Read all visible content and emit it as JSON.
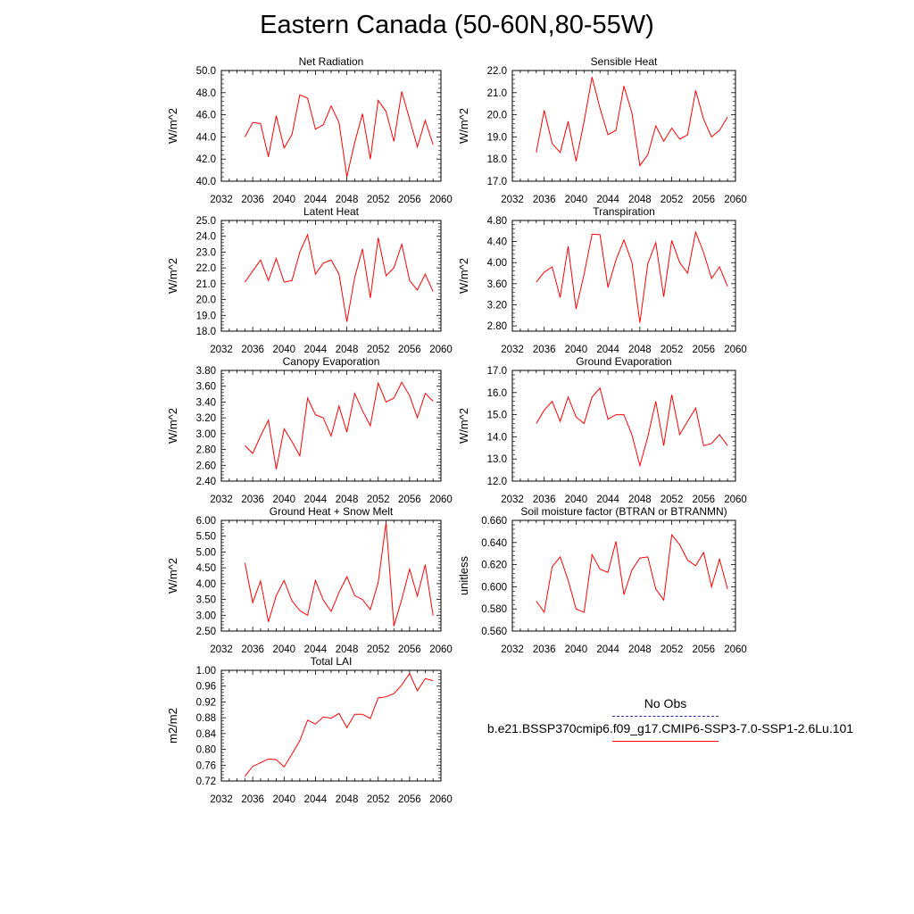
{
  "title": "Eastern Canada (50-60N,80-55W)",
  "legend": {
    "obs_label": "No Obs",
    "obs_color": "#1f2bb8",
    "case_label": "b.e21.BSSP370cmip6.f09_g17.CMIP6-SSP3-7.0-SSP1-2.6Lu.101",
    "case_color": "#ff0000"
  },
  "chart_data": [
    {
      "type": "line",
      "title": "Net Radiation",
      "ylabel": "W/m^2",
      "xlim": [
        2032,
        2060
      ],
      "xticks": [
        2032,
        2036,
        2040,
        2044,
        2048,
        2052,
        2056,
        2060
      ],
      "ylim": [
        40.0,
        50.0
      ],
      "yticks": [
        "40.0",
        "42.0",
        "44.0",
        "46.0",
        "48.0",
        "50.0"
      ],
      "x": [
        2035,
        2036,
        2037,
        2038,
        2039,
        2040,
        2041,
        2042,
        2043,
        2044,
        2045,
        2046,
        2047,
        2048,
        2049,
        2050,
        2051,
        2052,
        2053,
        2054,
        2055,
        2056,
        2057,
        2058,
        2059
      ],
      "values": [
        44.0,
        45.3,
        45.2,
        42.2,
        45.9,
        43.0,
        44.2,
        47.8,
        47.5,
        44.7,
        45.1,
        46.8,
        45.3,
        40.4,
        43.5,
        46.1,
        42.0,
        47.3,
        46.3,
        43.6,
        48.1,
        45.6,
        43.1,
        45.5,
        43.3
      ],
      "color": "#ff0000"
    },
    {
      "type": "line",
      "title": "Sensible Heat",
      "ylabel": "W/m^2",
      "xlim": [
        2032,
        2060
      ],
      "xticks": [
        2032,
        2036,
        2040,
        2044,
        2048,
        2052,
        2056,
        2060
      ],
      "ylim": [
        17.0,
        22.0
      ],
      "yticks": [
        "17.0",
        "18.0",
        "19.0",
        "20.0",
        "21.0",
        "22.0"
      ],
      "x": [
        2035,
        2036,
        2037,
        2038,
        2039,
        2040,
        2041,
        2042,
        2043,
        2044,
        2045,
        2046,
        2047,
        2048,
        2049,
        2050,
        2051,
        2052,
        2053,
        2054,
        2055,
        2056,
        2057,
        2058,
        2059
      ],
      "values": [
        18.3,
        20.2,
        18.7,
        18.3,
        19.7,
        17.9,
        19.7,
        21.7,
        20.3,
        19.1,
        19.3,
        21.3,
        20.1,
        17.7,
        18.2,
        19.5,
        18.8,
        19.4,
        18.9,
        19.1,
        21.1,
        19.8,
        19.0,
        19.3,
        19.9
      ],
      "color": "#ff0000"
    },
    {
      "type": "line",
      "title": "Latent Heat",
      "ylabel": "W/m^2",
      "xlim": [
        2032,
        2060
      ],
      "xticks": [
        2032,
        2036,
        2040,
        2044,
        2048,
        2052,
        2056,
        2060
      ],
      "ylim": [
        18.0,
        25.0
      ],
      "yticks": [
        "18.0",
        "19.0",
        "20.0",
        "21.0",
        "22.0",
        "23.0",
        "24.0",
        "25.0"
      ],
      "x": [
        2035,
        2036,
        2037,
        2038,
        2039,
        2040,
        2041,
        2042,
        2043,
        2044,
        2045,
        2046,
        2047,
        2048,
        2049,
        2050,
        2051,
        2052,
        2053,
        2054,
        2055,
        2056,
        2057,
        2058,
        2059
      ],
      "values": [
        21.1,
        21.8,
        22.5,
        21.2,
        22.6,
        21.1,
        21.2,
        23.0,
        24.1,
        21.6,
        22.3,
        22.5,
        21.6,
        18.6,
        21.4,
        23.2,
        20.1,
        23.9,
        21.5,
        22.0,
        23.5,
        21.2,
        20.6,
        21.6,
        20.5
      ],
      "color": "#ff0000"
    },
    {
      "type": "line",
      "title": "Transpiration",
      "ylabel": "W/m^2",
      "xlim": [
        2032,
        2060
      ],
      "xticks": [
        2032,
        2036,
        2040,
        2044,
        2048,
        2052,
        2056,
        2060
      ],
      "ylim": [
        2.7,
        4.8
      ],
      "yticks": [
        "2.80",
        "3.20",
        "3.60",
        "4.00",
        "4.40",
        "4.80"
      ],
      "x": [
        2035,
        2036,
        2037,
        2038,
        2039,
        2040,
        2041,
        2042,
        2043,
        2044,
        2045,
        2046,
        2047,
        2048,
        2049,
        2050,
        2051,
        2052,
        2053,
        2054,
        2055,
        2056,
        2057,
        2058,
        2059
      ],
      "values": [
        3.63,
        3.82,
        3.92,
        3.34,
        4.31,
        3.12,
        3.78,
        4.54,
        4.53,
        3.53,
        4.05,
        4.43,
        4.01,
        2.86,
        3.98,
        4.38,
        3.35,
        4.42,
        4.0,
        3.8,
        4.58,
        4.19,
        3.7,
        3.92,
        3.55
      ],
      "color": "#ff0000"
    },
    {
      "type": "line",
      "title": "Canopy Evaporation",
      "ylabel": "W/m^2",
      "xlim": [
        2032,
        2060
      ],
      "xticks": [
        2032,
        2036,
        2040,
        2044,
        2048,
        2052,
        2056,
        2060
      ],
      "ylim": [
        2.4,
        3.8
      ],
      "yticks": [
        "2.40",
        "2.60",
        "2.80",
        "3.00",
        "3.20",
        "3.40",
        "3.60",
        "3.80"
      ],
      "x": [
        2035,
        2036,
        2037,
        2038,
        2039,
        2040,
        2041,
        2042,
        2043,
        2044,
        2045,
        2046,
        2047,
        2048,
        2049,
        2050,
        2051,
        2052,
        2053,
        2054,
        2055,
        2056,
        2057,
        2058,
        2059
      ],
      "values": [
        2.85,
        2.75,
        2.97,
        3.17,
        2.55,
        3.06,
        2.9,
        2.72,
        3.45,
        3.24,
        3.2,
        2.97,
        3.35,
        3.02,
        3.51,
        3.29,
        3.1,
        3.64,
        3.4,
        3.45,
        3.65,
        3.48,
        3.2,
        3.51,
        3.41
      ],
      "color": "#ff0000"
    },
    {
      "type": "line",
      "title": "Ground Evaporation",
      "ylabel": "W/m^2",
      "xlim": [
        2032,
        2060
      ],
      "xticks": [
        2032,
        2036,
        2040,
        2044,
        2048,
        2052,
        2056,
        2060
      ],
      "ylim": [
        12.0,
        17.0
      ],
      "yticks": [
        "12.0",
        "13.0",
        "14.0",
        "15.0",
        "16.0",
        "17.0"
      ],
      "x": [
        2035,
        2036,
        2037,
        2038,
        2039,
        2040,
        2041,
        2042,
        2043,
        2044,
        2045,
        2046,
        2047,
        2048,
        2049,
        2050,
        2051,
        2052,
        2053,
        2054,
        2055,
        2056,
        2057,
        2058,
        2059
      ],
      "values": [
        14.6,
        15.2,
        15.6,
        14.7,
        15.8,
        14.9,
        14.6,
        15.8,
        16.2,
        14.8,
        15.0,
        15.0,
        14.1,
        12.7,
        14.0,
        15.6,
        13.6,
        15.9,
        14.1,
        14.7,
        15.3,
        13.6,
        13.7,
        14.1,
        13.6
      ],
      "color": "#ff0000"
    },
    {
      "type": "line",
      "title": "Ground Heat + Snow Melt",
      "ylabel": "W/m^2",
      "xlim": [
        2032,
        2060
      ],
      "xticks": [
        2032,
        2036,
        2040,
        2044,
        2048,
        2052,
        2056,
        2060
      ],
      "ylim": [
        2.5,
        6.0
      ],
      "yticks": [
        "2.50",
        "3.00",
        "3.50",
        "4.00",
        "4.50",
        "5.00",
        "5.50",
        "6.00"
      ],
      "x": [
        2035,
        2036,
        2037,
        2038,
        2039,
        2040,
        2041,
        2042,
        2043,
        2044,
        2045,
        2046,
        2047,
        2048,
        2049,
        2050,
        2051,
        2052,
        2053,
        2054,
        2055,
        2056,
        2057,
        2058,
        2059
      ],
      "values": [
        4.65,
        3.4,
        4.08,
        2.79,
        3.62,
        4.1,
        3.46,
        3.15,
        3.0,
        4.1,
        3.48,
        3.12,
        3.72,
        4.22,
        3.62,
        3.5,
        3.18,
        4.03,
        5.93,
        2.66,
        3.5,
        4.46,
        3.6,
        4.6,
        2.99
      ],
      "color": "#ff0000"
    },
    {
      "type": "line",
      "title": "Soil moisture factor (BTRAN or BTRANMN)",
      "ylabel": "unitless",
      "xlim": [
        2032,
        2060
      ],
      "xticks": [
        2032,
        2036,
        2040,
        2044,
        2048,
        2052,
        2056,
        2060
      ],
      "ylim": [
        0.56,
        0.66
      ],
      "yticks": [
        "0.560",
        "0.580",
        "0.600",
        "0.620",
        "0.640",
        "0.660"
      ],
      "x": [
        2035,
        2036,
        2037,
        2038,
        2039,
        2040,
        2041,
        2042,
        2043,
        2044,
        2045,
        2046,
        2047,
        2048,
        2049,
        2050,
        2051,
        2052,
        2053,
        2054,
        2055,
        2056,
        2057,
        2058,
        2059
      ],
      "values": [
        0.587,
        0.577,
        0.618,
        0.627,
        0.606,
        0.58,
        0.577,
        0.629,
        0.616,
        0.613,
        0.641,
        0.593,
        0.615,
        0.626,
        0.627,
        0.598,
        0.588,
        0.647,
        0.638,
        0.624,
        0.619,
        0.631,
        0.6,
        0.625,
        0.598
      ],
      "color": "#ff0000"
    },
    {
      "type": "line",
      "title": "Total LAI",
      "ylabel": "m2/m2",
      "xlim": [
        2032,
        2060
      ],
      "xticks": [
        2032,
        2036,
        2040,
        2044,
        2048,
        2052,
        2056,
        2060
      ],
      "ylim": [
        0.72,
        1.0
      ],
      "yticks": [
        "0.72",
        "0.76",
        "0.80",
        "0.84",
        "0.88",
        "0.92",
        "0.96",
        "1.00"
      ],
      "x": [
        2035,
        2036,
        2037,
        2038,
        2039,
        2040,
        2041,
        2042,
        2043,
        2044,
        2045,
        2046,
        2047,
        2048,
        2049,
        2050,
        2051,
        2052,
        2053,
        2054,
        2055,
        2056,
        2057,
        2058,
        2059
      ],
      "values": [
        0.732,
        0.757,
        0.766,
        0.776,
        0.774,
        0.756,
        0.788,
        0.822,
        0.874,
        0.864,
        0.882,
        0.879,
        0.891,
        0.855,
        0.889,
        0.889,
        0.878,
        0.93,
        0.933,
        0.941,
        0.963,
        0.992,
        0.948,
        0.979,
        0.974
      ],
      "color": "#ff0000"
    }
  ]
}
